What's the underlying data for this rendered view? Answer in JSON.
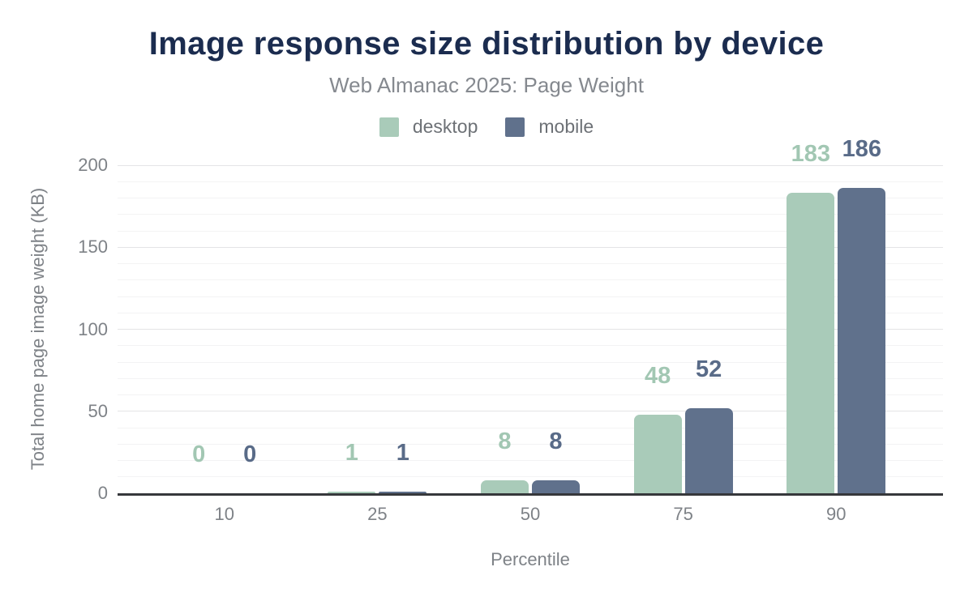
{
  "chart_data": {
    "type": "bar",
    "title": "Image response size distribution by device",
    "subtitle": "Web Almanac 2025: Page Weight",
    "xlabel": "Percentile",
    "ylabel": "Total home page image weight (KB)",
    "categories": [
      "10",
      "25",
      "50",
      "75",
      "90"
    ],
    "series": [
      {
        "name": "desktop",
        "color": "#a9cbb9",
        "label_color": "#a2c7b3",
        "values": [
          0,
          1,
          8,
          48,
          183
        ]
      },
      {
        "name": "mobile",
        "color": "#60718c",
        "label_color": "#596b88",
        "values": [
          0,
          1,
          8,
          52,
          186
        ]
      }
    ],
    "ylim": [
      0,
      200
    ],
    "yticks": [
      0,
      50,
      100,
      150,
      200
    ],
    "minor_grid_step": 10,
    "major_grid_step": 50,
    "grid": true,
    "legend_position": "top",
    "bar_value_labels": true
  },
  "colors": {
    "title": "#1b2c4f",
    "subtitle": "#85898f",
    "tick_label": "#7e8287",
    "legend_label": "#6d7176",
    "axis_line": "#36383b",
    "grid_major": "#e4e4e6",
    "grid_minor": "#f3f3f4",
    "background": "#ffffff"
  }
}
